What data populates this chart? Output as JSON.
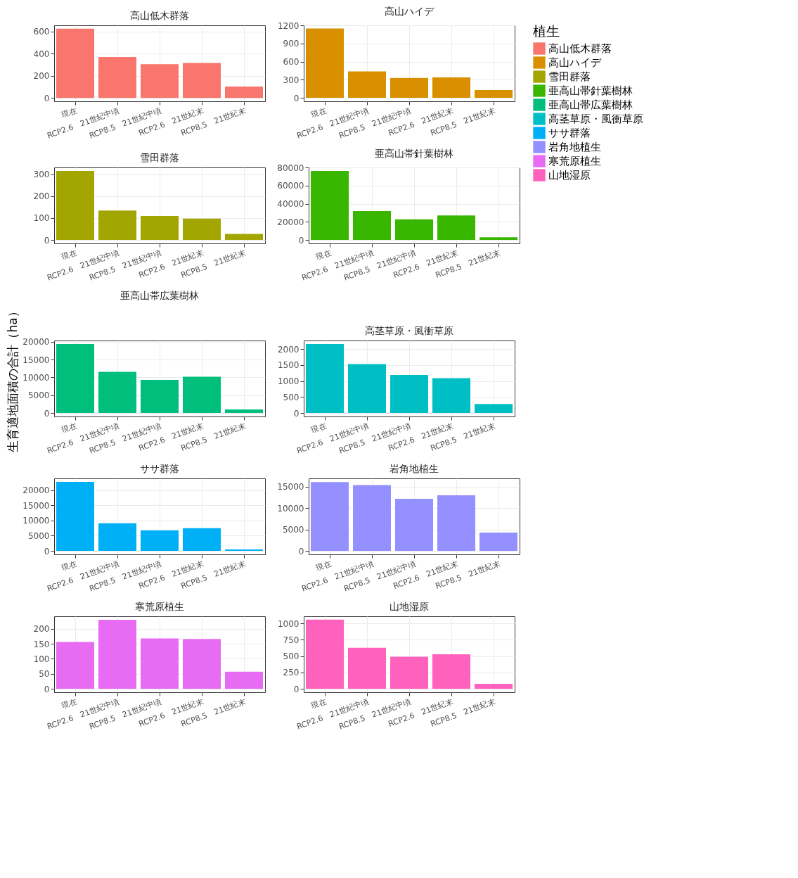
{
  "chart_data": [
    {
      "type": "bar",
      "title": "高山低木群落",
      "categories": [
        "現在",
        "RCP2.6　21世紀中頃",
        "RCP8.5　21世紀中頃",
        "RCP2.6　21世紀末",
        "RCP8.5　21世紀末"
      ],
      "series": [
        {
          "name": "高山低木群落",
          "color": "#f8766d",
          "values": [
            625,
            369,
            305,
            315,
            103
          ]
        }
      ],
      "ylim": [
        -31,
        656
      ],
      "yticks": [
        0,
        200,
        400,
        600
      ],
      "grid": true,
      "legend": "right"
    },
    {
      "type": "bar",
      "title": "高山ハイデ",
      "categories": [
        "現在",
        "RCP2.6　21世紀中頃",
        "RCP8.5　21世紀中頃",
        "RCP2.6　21世紀末",
        "RCP8.5　21世紀末"
      ],
      "series": [
        {
          "name": "高山ハイデ",
          "color": "#d89000",
          "values": [
            1150,
            440,
            330,
            340,
            130
          ]
        }
      ],
      "ylim": [
        -57,
        1203
      ],
      "yticks": [
        0,
        300,
        600,
        900,
        1200
      ],
      "grid": true,
      "legend": "right"
    },
    {
      "type": "bar",
      "title": "雪田群落",
      "categories": [
        "現在",
        "RCP2.6　21世紀中頃",
        "RCP8.5　21世紀中頃",
        "RCP2.6　21世紀末",
        "RCP8.5　21世紀末"
      ],
      "series": [
        {
          "name": "雪田群落",
          "color": "#a3a500",
          "values": [
            315,
            134,
            109,
            97,
            27
          ]
        }
      ],
      "ylim": [
        -16,
        331
      ],
      "yticks": [
        0,
        100,
        200,
        300
      ],
      "grid": true,
      "legend": "right"
    },
    {
      "type": "bar",
      "title": "亜高山帯針葉樹林",
      "categories": [
        "現在",
        "RCP2.6　21世紀中頃",
        "RCP8.5　21世紀中頃",
        "RCP2.6　21世紀末",
        "RCP8.5　21世紀末"
      ],
      "series": [
        {
          "name": "亜高山帯針葉樹林",
          "color": "#39b600",
          "values": [
            76400,
            31900,
            22900,
            27100,
            3000
          ]
        }
      ],
      "ylim": [
        -3820,
        80220
      ],
      "yticks": [
        0,
        20000,
        40000,
        60000,
        80000
      ],
      "grid": true,
      "legend": "right"
    },
    {
      "type": "bar",
      "title": "亜高山帯広葉樹林",
      "ylabel": "生育適地面積の合計（ha）",
      "categories": [
        "現在",
        "RCP2.6　21世紀中頃",
        "RCP8.5　21世紀中頃",
        "RCP2.6　21世紀末",
        "RCP8.5　21世紀末"
      ],
      "series": [
        {
          "name": "亜高山帯広葉樹林",
          "color": "#00bf7d",
          "values": [
            19400,
            11600,
            9300,
            10200,
            1000
          ]
        }
      ],
      "ylim": [
        -970,
        20370
      ],
      "yticks": [
        0,
        5000,
        10000,
        15000,
        20000
      ],
      "grid": true,
      "legend": "right"
    },
    {
      "type": "bar",
      "title": "高茎草原・風衝草原",
      "legend_title": "植生",
      "categories": [
        "現在",
        "RCP2.6　21世紀中頃",
        "RCP8.5　21世紀中頃",
        "RCP2.6　21世紀末",
        "RCP8.5　21世紀末"
      ],
      "series": [
        {
          "name": "高茎草原・風衝草原",
          "color": "#00bfc4",
          "values": [
            2160,
            1530,
            1190,
            1090,
            280
          ]
        }
      ],
      "ylim": [
        -108,
        2268
      ],
      "yticks": [
        0,
        500,
        1000,
        1500,
        2000
      ],
      "grid": true,
      "legend": "right"
    },
    {
      "type": "bar",
      "title": "ササ群落",
      "categories": [
        "現在",
        "RCP2.6　21世紀中頃",
        "RCP8.5　21世紀中頃",
        "RCP2.6　21世紀末",
        "RCP8.5　21世紀末"
      ],
      "series": [
        {
          "name": "ササ群落",
          "color": "#00b0f6",
          "values": [
            22700,
            9100,
            6800,
            7500,
            500
          ]
        }
      ],
      "ylim": [
        -1135,
        23835
      ],
      "yticks": [
        0,
        5000,
        10000,
        15000,
        20000
      ],
      "grid": true,
      "legend": "right"
    },
    {
      "type": "bar",
      "title": "岩角地植生",
      "categories": [
        "現在",
        "RCP2.6　21世紀中頃",
        "RCP8.5　21世紀中頃",
        "RCP2.6　21世紀末",
        "RCP8.5　21世紀末"
      ],
      "series": [
        {
          "name": "岩角地植生",
          "color": "#9590ff",
          "values": [
            16100,
            15400,
            12200,
            13000,
            4300
          ]
        }
      ],
      "ylim": [
        -808,
        16960
      ],
      "yticks": [
        0,
        5000,
        10000,
        15000
      ],
      "grid": true,
      "legend": "right"
    },
    {
      "type": "bar",
      "title": "寒荒原植生",
      "categories": [
        "現在",
        "RCP2.6　21世紀中頃",
        "RCP8.5　21世紀中頃",
        "RCP2.6　21世紀末",
        "RCP8.5　21世紀末"
      ],
      "series": [
        {
          "name": "寒荒原植生",
          "color": "#e76bf3",
          "values": [
            156,
            230,
            168,
            166,
            57
          ]
        }
      ],
      "ylim": [
        -11.5,
        241.5
      ],
      "yticks": [
        0,
        50,
        100,
        150,
        200
      ],
      "grid": true,
      "legend": "right"
    },
    {
      "type": "bar",
      "title": "山地湿原",
      "categories": [
        "現在",
        "RCP2.6　21世紀中頃",
        "RCP8.5　21世紀中頃",
        "RCP2.6　21世紀末",
        "RCP8.5　21世紀末"
      ],
      "series": [
        {
          "name": "山地湿原",
          "color": "#ff62bc",
          "values": [
            1060,
            630,
            490,
            530,
            75
          ]
        }
      ],
      "ylim": [
        -53,
        1111
      ],
      "yticks": [
        0,
        250,
        500,
        750,
        1000
      ],
      "grid": true,
      "legend": "right"
    }
  ]
}
